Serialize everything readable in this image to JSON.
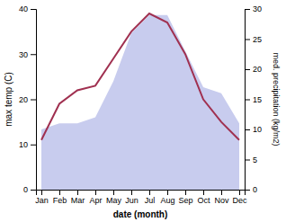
{
  "chart_data": {
    "type": "line",
    "xlabel": "date (month)",
    "ylabel": "max temp (C)",
    "y2label": "med. precipitation (kg/m2)",
    "categories": [
      "Jan",
      "Feb",
      "Mar",
      "Apr",
      "May",
      "Jun",
      "Jul",
      "Aug",
      "Sep",
      "Oct",
      "Nov",
      "Dec"
    ],
    "series": [
      {
        "type": "area",
        "axis": "y2",
        "color": "#c8ccee",
        "values": [
          10,
          11,
          11,
          12,
          18,
          26,
          29,
          29,
          23,
          17,
          16,
          11
        ]
      },
      {
        "type": "line",
        "color": "#a03050",
        "values": [
          11,
          19,
          22,
          23,
          29,
          35,
          39,
          37,
          30,
          20,
          15,
          11
        ]
      }
    ],
    "ylim": [
      0,
      40
    ],
    "yticks": [
      0,
      10,
      20,
      30,
      40
    ],
    "y2lim": [
      0,
      30
    ],
    "y2ticks": [
      0,
      5,
      10,
      15,
      20,
      25,
      30
    ],
    "grid": false
  }
}
